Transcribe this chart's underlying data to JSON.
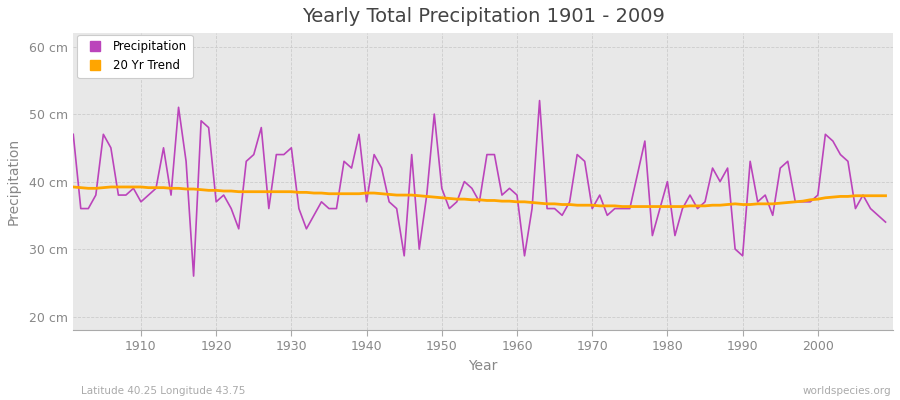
{
  "title": "Yearly Total Precipitation 1901 - 2009",
  "xlabel": "Year",
  "ylabel": "Precipitation",
  "subtitle": "Latitude 40.25 Longitude 43.75",
  "watermark": "worldspecies.org",
  "precip_color": "#bb44bb",
  "trend_color": "#ffa500",
  "bg_color": "#ffffff",
  "plot_bg_color": "#e8e8e8",
  "ylim": [
    18,
    62
  ],
  "yticks": [
    20,
    30,
    40,
    50,
    60
  ],
  "ytick_labels": [
    "20 cm",
    "30 cm",
    "40 cm",
    "50 cm",
    "60 cm"
  ],
  "xlim": [
    1901,
    2010
  ],
  "xtick_positions": [
    1910,
    1920,
    1930,
    1940,
    1950,
    1960,
    1970,
    1980,
    1990,
    2000
  ],
  "years": [
    1901,
    1902,
    1903,
    1904,
    1905,
    1906,
    1907,
    1908,
    1909,
    1910,
    1911,
    1912,
    1913,
    1914,
    1915,
    1916,
    1917,
    1918,
    1919,
    1920,
    1921,
    1922,
    1923,
    1924,
    1925,
    1926,
    1927,
    1928,
    1929,
    1930,
    1931,
    1932,
    1933,
    1934,
    1935,
    1936,
    1937,
    1938,
    1939,
    1940,
    1941,
    1942,
    1943,
    1944,
    1945,
    1946,
    1947,
    1948,
    1949,
    1950,
    1951,
    1952,
    1953,
    1954,
    1955,
    1956,
    1957,
    1958,
    1959,
    1960,
    1961,
    1962,
    1963,
    1964,
    1965,
    1966,
    1967,
    1968,
    1969,
    1970,
    1971,
    1972,
    1973,
    1974,
    1975,
    1976,
    1977,
    1978,
    1979,
    1980,
    1981,
    1982,
    1983,
    1984,
    1985,
    1986,
    1987,
    1988,
    1989,
    1990,
    1991,
    1992,
    1993,
    1994,
    1995,
    1996,
    1997,
    1998,
    1999,
    2000,
    2001,
    2002,
    2003,
    2004,
    2005,
    2006,
    2007,
    2008,
    2009
  ],
  "precip": [
    47,
    36,
    36,
    38,
    47,
    45,
    38,
    38,
    39,
    37,
    38,
    39,
    45,
    38,
    51,
    43,
    26,
    49,
    48,
    37,
    38,
    36,
    33,
    43,
    44,
    48,
    36,
    44,
    44,
    45,
    36,
    33,
    35,
    37,
    36,
    36,
    43,
    42,
    47,
    37,
    44,
    42,
    37,
    36,
    29,
    44,
    30,
    38,
    50,
    39,
    36,
    37,
    40,
    39,
    37,
    44,
    44,
    38,
    39,
    38,
    29,
    36,
    52,
    36,
    36,
    35,
    37,
    44,
    43,
    36,
    38,
    35,
    36,
    36,
    36,
    41,
    46,
    32,
    36,
    40,
    32,
    36,
    38,
    36,
    37,
    42,
    40,
    42,
    30,
    29,
    43,
    37,
    38,
    35,
    42,
    43,
    37,
    37,
    37,
    38,
    47,
    46,
    44,
    43,
    36,
    38,
    36,
    35,
    34
  ],
  "trend": [
    39.2,
    39.1,
    39.0,
    39.0,
    39.1,
    39.2,
    39.2,
    39.2,
    39.2,
    39.2,
    39.1,
    39.1,
    39.1,
    39.0,
    39.0,
    38.9,
    38.9,
    38.8,
    38.7,
    38.7,
    38.6,
    38.6,
    38.5,
    38.5,
    38.5,
    38.5,
    38.5,
    38.5,
    38.5,
    38.5,
    38.4,
    38.4,
    38.3,
    38.3,
    38.2,
    38.2,
    38.2,
    38.2,
    38.2,
    38.3,
    38.3,
    38.2,
    38.1,
    38.0,
    38.0,
    38.0,
    37.9,
    37.8,
    37.7,
    37.6,
    37.5,
    37.4,
    37.4,
    37.3,
    37.3,
    37.2,
    37.2,
    37.1,
    37.1,
    37.0,
    37.0,
    36.9,
    36.8,
    36.7,
    36.7,
    36.6,
    36.6,
    36.5,
    36.5,
    36.5,
    36.4,
    36.4,
    36.4,
    36.3,
    36.3,
    36.3,
    36.3,
    36.3,
    36.3,
    36.3,
    36.3,
    36.3,
    36.4,
    36.4,
    36.4,
    36.5,
    36.5,
    36.6,
    36.7,
    36.6,
    36.6,
    36.7,
    36.7,
    36.7,
    36.8,
    36.9,
    37.0,
    37.1,
    37.3,
    37.4,
    37.6,
    37.7,
    37.8,
    37.8,
    37.9,
    37.9,
    37.9,
    37.9,
    37.9
  ]
}
